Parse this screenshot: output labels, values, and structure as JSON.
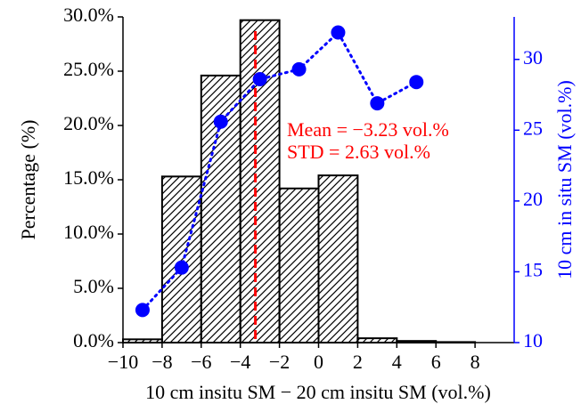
{
  "chart_data": {
    "type": "histogram",
    "xlabel": "10 cm insitu SM − 20 cm insitu SM (vol.%)",
    "ylabel": "Percentage (%)",
    "y2label": "10 cm in situ SM (vol.%)",
    "bins": [
      -10,
      -8,
      -6,
      -4,
      -2,
      0,
      2,
      4,
      6,
      8,
      10
    ],
    "values": [
      0.3,
      15.3,
      24.6,
      29.7,
      14.2,
      15.4,
      0.4,
      0.15,
      0.05,
      0
    ],
    "color": "#000000",
    "hatch": true,
    "line": {
      "type": "line",
      "x": [
        -9,
        -7,
        -5,
        -3,
        -1,
        1,
        3,
        5
      ],
      "values": [
        12.3,
        15.3,
        25.6,
        28.6,
        29.3,
        31.9,
        26.9,
        28.4
      ],
      "color": "#0000ff",
      "axis": "y2"
    },
    "mean_line": {
      "value": -3.23,
      "color": "#ff0000"
    },
    "annotations": [
      "Mean = −3.23 vol.%",
      "STD = 2.63 vol.%"
    ],
    "xlim": [
      -10,
      10
    ],
    "xticks": [
      {
        "value": -10,
        "label": "−10"
      },
      {
        "value": -8,
        "label": "−8"
      },
      {
        "value": -6,
        "label": "−6"
      },
      {
        "value": -4,
        "label": "−4"
      },
      {
        "value": -2,
        "label": "−2"
      },
      0,
      2,
      4,
      6,
      8
    ],
    "ylim": [
      0,
      30
    ],
    "yticks": [
      {
        "value": 0,
        "label": "0.0%"
      },
      {
        "value": 5,
        "label": "5.0%"
      },
      {
        "value": 10,
        "label": "10.0%"
      },
      {
        "value": 15,
        "label": "15.0%"
      },
      {
        "value": 20,
        "label": "20.0%"
      },
      {
        "value": 25,
        "label": "25.0%"
      },
      {
        "value": 30,
        "label": "30.0%"
      }
    ],
    "y2lim": [
      10,
      33
    ],
    "y2ticks": [
      10,
      15,
      20,
      25,
      30
    ]
  }
}
